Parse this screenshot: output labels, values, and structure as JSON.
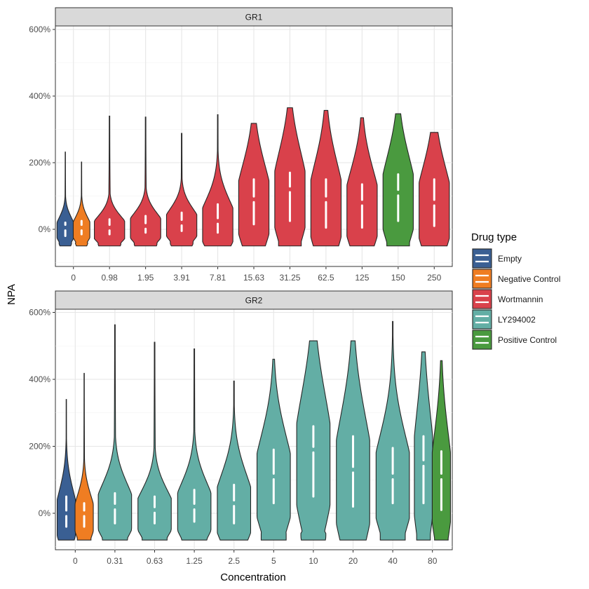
{
  "figure": {
    "xlabel": "Concentration",
    "ylabel": "NPA",
    "legend_title": "Drug type",
    "legend": [
      {
        "label": "Empty",
        "color": "#3a5f93"
      },
      {
        "label": "Negative Control",
        "color": "#ef7d22"
      },
      {
        "label": "Wortmannin",
        "color": "#d9414b"
      },
      {
        "label": "LY294002",
        "color": "#63aea5"
      },
      {
        "label": "Positive Control",
        "color": "#4a9a3f"
      }
    ]
  },
  "chart_data": [
    {
      "type": "violin",
      "panel": "GR1",
      "ylim": [
        -100,
        600
      ],
      "y_ticks": [
        "0%",
        "200%",
        "400%",
        "600%"
      ],
      "y_tick_values": [
        0,
        200,
        400,
        600
      ],
      "categories": [
        "0",
        "0.98",
        "1.95",
        "3.91",
        "7.81",
        "15.63",
        "31.25",
        "62.5",
        "125",
        "150",
        "250"
      ],
      "violins": [
        {
          "category": "0",
          "group": "Empty",
          "color": "#3a5f93",
          "min": -50,
          "max": 232,
          "q1": -20,
          "median": 5,
          "q3": 20
        },
        {
          "category": "0",
          "group": "Negative Control",
          "color": "#ef7d22",
          "min": -50,
          "max": 202,
          "q1": -15,
          "median": 5,
          "q3": 25
        },
        {
          "category": "0.98",
          "group": "Wortmannin",
          "color": "#d9414b",
          "min": -50,
          "max": 340,
          "q1": -15,
          "median": 5,
          "q3": 30
        },
        {
          "category": "1.95",
          "group": "Wortmannin",
          "color": "#d9414b",
          "min": -50,
          "max": 337,
          "q1": -10,
          "median": 10,
          "q3": 40
        },
        {
          "category": "3.91",
          "group": "Wortmannin",
          "color": "#d9414b",
          "min": -50,
          "max": 288,
          "q1": -5,
          "median": 20,
          "q3": 50
        },
        {
          "category": "7.81",
          "group": "Wortmannin",
          "color": "#d9414b",
          "min": -50,
          "max": 344,
          "q1": -10,
          "median": 25,
          "q3": 75
        },
        {
          "category": "15.63",
          "group": "Wortmannin",
          "color": "#d9414b",
          "min": -50,
          "max": 318,
          "q1": 15,
          "median": 90,
          "q3": 150
        },
        {
          "category": "31.25",
          "group": "Wortmannin",
          "color": "#d9414b",
          "min": -50,
          "max": 365,
          "q1": 25,
          "median": 120,
          "q3": 170
        },
        {
          "category": "62.5",
          "group": "Wortmannin",
          "color": "#d9414b",
          "min": -50,
          "max": 357,
          "q1": 5,
          "median": 90,
          "q3": 150
        },
        {
          "category": "125",
          "group": "Wortmannin",
          "color": "#d9414b",
          "min": -50,
          "max": 335,
          "q1": 5,
          "median": 80,
          "q3": 135
        },
        {
          "category": "150",
          "group": "Positive Control",
          "color": "#4a9a3f",
          "min": -50,
          "max": 347,
          "q1": 25,
          "median": 110,
          "q3": 165
        },
        {
          "category": "250",
          "group": "Wortmannin",
          "color": "#d9414b",
          "min": -50,
          "max": 291,
          "q1": 10,
          "median": 80,
          "q3": 150
        }
      ]
    },
    {
      "type": "violin",
      "panel": "GR2",
      "ylim": [
        -100,
        600
      ],
      "y_ticks": [
        "0%",
        "200%",
        "400%",
        "600%"
      ],
      "y_tick_values": [
        0,
        200,
        400,
        600
      ],
      "categories": [
        "0",
        "0.31",
        "0.63",
        "1.25",
        "2.5",
        "5",
        "10",
        "20",
        "40",
        "80"
      ],
      "violins": [
        {
          "category": "0",
          "group": "Empty",
          "color": "#3a5f93",
          "min": -80,
          "max": 340,
          "q1": -40,
          "median": 0,
          "q3": 50
        },
        {
          "category": "0",
          "group": "Negative Control",
          "color": "#ef7d22",
          "min": -80,
          "max": 418,
          "q1": -40,
          "median": 0,
          "q3": 30
        },
        {
          "category": "0.31",
          "group": "LY294002",
          "color": "#63aea5",
          "min": -80,
          "max": 563,
          "q1": -30,
          "median": 20,
          "q3": 60
        },
        {
          "category": "0.63",
          "group": "LY294002",
          "color": "#63aea5",
          "min": -80,
          "max": 511,
          "q1": -30,
          "median": 10,
          "q3": 50
        },
        {
          "category": "1.25",
          "group": "LY294002",
          "color": "#63aea5",
          "min": -80,
          "max": 491,
          "q1": -25,
          "median": 20,
          "q3": 70
        },
        {
          "category": "2.5",
          "group": "LY294002",
          "color": "#63aea5",
          "min": -80,
          "max": 395,
          "q1": -30,
          "median": 30,
          "q3": 85
        },
        {
          "category": "5",
          "group": "LY294002",
          "color": "#63aea5",
          "min": -80,
          "max": 460,
          "q1": 30,
          "median": 110,
          "q3": 190
        },
        {
          "category": "10",
          "group": "LY294002",
          "color": "#63aea5",
          "min": -80,
          "max": 515,
          "q1": 50,
          "median": 190,
          "q3": 260
        },
        {
          "category": "20",
          "group": "LY294002",
          "color": "#63aea5",
          "min": -80,
          "max": 515,
          "q1": 20,
          "median": 130,
          "q3": 230
        },
        {
          "category": "40",
          "group": "LY294002",
          "color": "#63aea5",
          "min": -80,
          "max": 573,
          "q1": 30,
          "median": 110,
          "q3": 195
        },
        {
          "category": "80",
          "group": "LY294002",
          "color": "#63aea5",
          "min": -80,
          "max": 482,
          "q1": 30,
          "median": 150,
          "q3": 230
        },
        {
          "category": "80",
          "group": "Positive Control",
          "color": "#4a9a3f",
          "min": -80,
          "max": 456,
          "q1": 10,
          "median": 110,
          "q3": 185
        }
      ]
    }
  ]
}
